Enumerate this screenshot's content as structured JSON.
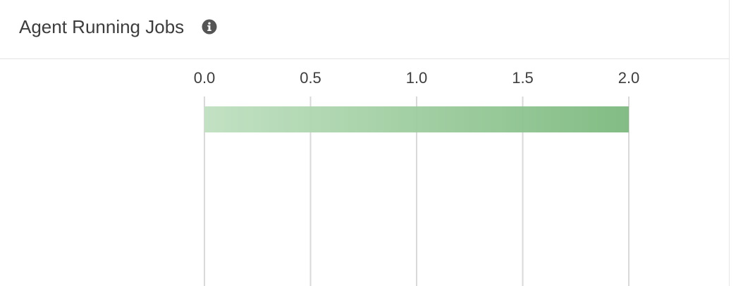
{
  "panel": {
    "title": "Agent Running Jobs",
    "info_icon": "info-circle-icon"
  },
  "colors": {
    "bar_start": "#bfe0c0",
    "bar_end": "#7cb97e",
    "grid": "#d9d9d9",
    "tick_text": "#3d3d3d"
  },
  "chart_data": {
    "type": "bar",
    "orientation": "horizontal",
    "title": "",
    "xlabel": "",
    "ylabel": "",
    "categories": [
      ""
    ],
    "values": [
      2.0
    ],
    "xlim": [
      0.0,
      2.0
    ],
    "ticks": [
      "0.0",
      "0.5",
      "1.0",
      "1.5",
      "2.0"
    ],
    "grid": true,
    "legend": "none"
  }
}
